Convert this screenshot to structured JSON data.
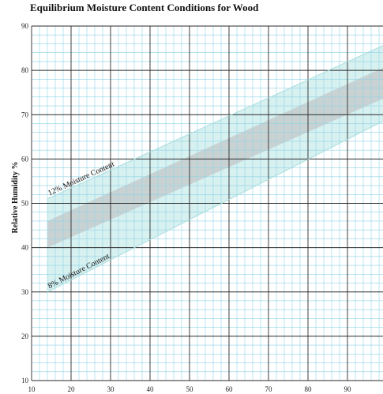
{
  "chart_data": {
    "type": "area",
    "title": "Equilibrium Moisture Content Conditions for Wood",
    "ylabel": "Relative Humidity %",
    "xlabel": "",
    "xlim": [
      10,
      100
    ],
    "ylim": [
      10,
      90
    ],
    "x_ticks": [
      "10",
      "20",
      "30",
      "40",
      "50",
      "60",
      "70",
      "80",
      "90"
    ],
    "y_ticks": [
      "10",
      "20",
      "30",
      "40",
      "50",
      "60",
      "70",
      "80",
      "90"
    ],
    "grid": true,
    "colors": {
      "grid_major": "#2b2b2b",
      "grid_minor": "#8fd3e6",
      "band_light": "#d3eeee",
      "band_dark": "#c4c8c8"
    },
    "series": [
      {
        "name": "12% Moisture Content",
        "x": [
          14,
          100
        ],
        "y": [
          51,
          86
        ]
      },
      {
        "name": "8% Moisture Content",
        "x": [
          14,
          100
        ],
        "y": [
          30,
          69
        ]
      }
    ],
    "shaded_band": {
      "x": [
        14,
        100
      ],
      "upper": [
        46,
        81
      ],
      "lower": [
        40,
        74
      ]
    }
  }
}
